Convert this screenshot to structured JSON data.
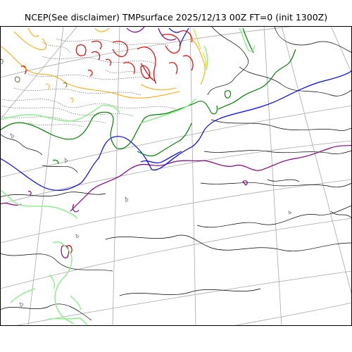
{
  "map": {
    "title": "NCEP(See disclaimer) TMPsurface 2025/12/13 00Z FT=0 (init 1300Z)",
    "colors": {
      "frame": "#000000",
      "graticule": "#a8a8a8",
      "coast": "#000000",
      "red": "#e00000",
      "orange": "#ffa500",
      "purple": "#800080",
      "blue": "#0000ff",
      "green": "#008000",
      "light_green": "#90ee90",
      "yellow": "#d8d800",
      "dark_olive": "#556b2f",
      "gray": "#555555"
    }
  }
}
